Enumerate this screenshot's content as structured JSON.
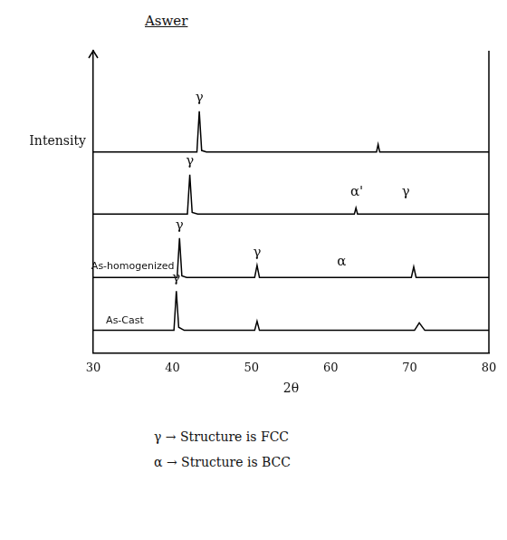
{
  "chart_data": {
    "type": "line",
    "title": "Aswer",
    "x_label": "2θ",
    "y_label": "Intensity",
    "xlim": [
      30,
      80
    ],
    "xticks": [
      30,
      40,
      50,
      60,
      70,
      80
    ],
    "ylim": [
      0,
      100
    ],
    "tick_labels": "x",
    "grid": false,
    "series": [
      {
        "color": "#000000",
        "x": [
          30,
          40.2,
          40.5,
          40.8,
          41.5,
          50.4,
          50.7,
          51.0,
          70.6,
          71.2,
          71.9,
          80
        ],
        "values": [
          7.5,
          7.5,
          20.5,
          8.5,
          7.5,
          7.5,
          10.5,
          7.5,
          7.5,
          10,
          7.5,
          7.5
        ]
      },
      {
        "color": "#000000",
        "x": [
          30,
          40.6,
          40.9,
          41.2,
          41.8,
          50.4,
          50.7,
          51.0,
          70.2,
          70.5,
          70.8,
          80
        ],
        "values": [
          25,
          25,
          38,
          25.5,
          25,
          25,
          29,
          25,
          25,
          28.5,
          25,
          25
        ]
      },
      {
        "color": "#000000",
        "x": [
          30,
          41.9,
          42.2,
          42.5,
          43.2,
          63.0,
          63.2,
          63.4,
          80
        ],
        "values": [
          46,
          46,
          59,
          46.5,
          46,
          46,
          48,
          46,
          46
        ]
      },
      {
        "color": "#000000",
        "x": [
          30,
          43.1,
          43.4,
          43.7,
          44.3,
          65.8,
          66.0,
          66.2,
          80
        ],
        "values": [
          66.5,
          66.5,
          80,
          67,
          66.5,
          66.5,
          69,
          66.5,
          66.5
        ]
      }
    ],
    "annotations": [
      {
        "text": "As-Cast",
        "x": 34,
        "y": 9
      },
      {
        "text": "As-homogenized",
        "x": 35,
        "y": 27
      },
      {
        "text": "γ",
        "x": 40.5,
        "y": 22.5
      },
      {
        "text": "γ",
        "x": 50.7,
        "y": 31
      },
      {
        "text": "α",
        "x": 61.4,
        "y": 28
      },
      {
        "text": "γ",
        "x": 40.9,
        "y": 40
      },
      {
        "text": "γ",
        "x": 42.2,
        "y": 61
      },
      {
        "text": "α'",
        "x": 63.3,
        "y": 51
      },
      {
        "text": "γ",
        "x": 69.5,
        "y": 51
      },
      {
        "text": "γ",
        "x": 43.4,
        "y": 82
      }
    ],
    "notes": [
      "γ → Structure is FCC",
      "α → Structure is BCC"
    ]
  }
}
